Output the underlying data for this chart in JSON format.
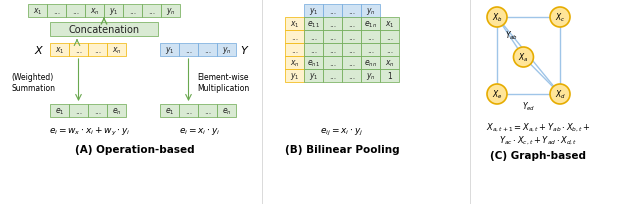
{
  "fig_width": 6.4,
  "fig_height": 2.05,
  "dpi": 100,
  "bg_color": "#ffffff",
  "green_fill": "#d9ead3",
  "green_edge": "#6aa84f",
  "yellow_fill": "#fff2cc",
  "yellow_edge": "#f0b400",
  "blue_fill": "#cfe2f3",
  "blue_edge": "#6fa8dc",
  "node_fill": "#ffe599",
  "node_edge": "#e6ac00",
  "graph_edge_color": "#9fc5e8",
  "section_titles": [
    "(A) Operation-based",
    "(B) Bilinear Pooling",
    "(C) Graph-based"
  ],
  "formula_A1": "$e_i = w_x \\cdot x_i + w_y \\cdot y_i$",
  "formula_A2": "$e_i = x_i \\cdot y_i$",
  "formula_B": "$e_{ij} = x_i \\cdot y_j$",
  "formula_C1": "$X_{a,t+1} = X_{a,t}+ Y_{ab} \\cdot X_{b,t}+$",
  "formula_C2": "$Y_{ac} \\cdot X_{c,t}+ Y_{ad} \\cdot X_{d,t}$"
}
